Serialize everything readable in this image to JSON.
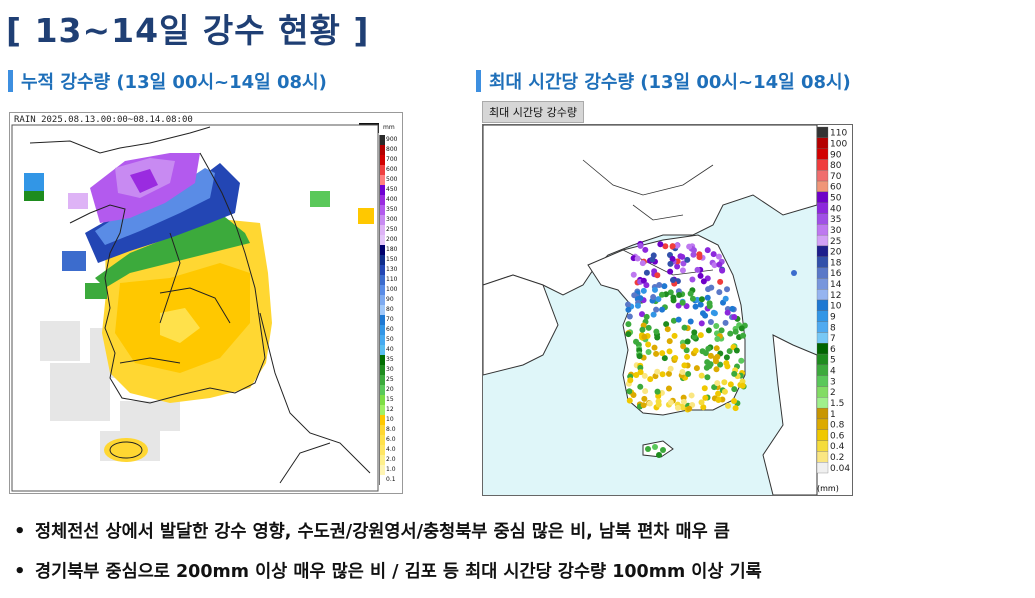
{
  "title": "[ 13~14일 강수 현황 ]",
  "left_panel": {
    "heading": "누적 강수량 (13일 00시~14일 08시)",
    "map_header": "RAIN  2025.08.13.00:00~08.14.08:00",
    "max_badge": "7774",
    "legend_unit": "mm",
    "legend_labels": [
      "900",
      "800",
      "700",
      "600",
      "500",
      "450",
      "400",
      "350",
      "300",
      "250",
      "200",
      "180",
      "150",
      "130",
      "110",
      "100",
      "90",
      "80",
      "70",
      "60",
      "50",
      "40",
      "35",
      "30",
      "25",
      "20",
      "15",
      "12",
      "10",
      "8.0",
      "6.0",
      "4.0",
      "2.0",
      "1.0",
      "0.1"
    ],
    "legend_colors": [
      "#2a2a2a",
      "#b40000",
      "#d20000",
      "#f04040",
      "#ff7f7f",
      "#6e00d2",
      "#9a2be0",
      "#b35aee",
      "#c88af2",
      "#deb3f6",
      "#e4c6fa",
      "#00006e",
      "#0f2d8c",
      "#2346b4",
      "#3c6ccd",
      "#5a8ce6",
      "#7eaaf0",
      "#a0c8fa",
      "#1e78d2",
      "#3296e6",
      "#46aaf0",
      "#5abef0",
      "#006e00",
      "#1e8c1e",
      "#3caa3c",
      "#5ac85a",
      "#7ede46",
      "#a0f064",
      "#ffc800",
      "#ffd732",
      "#ffe14b",
      "#ffe664",
      "#fff08c",
      "#fff5b4",
      "#ffffff"
    ]
  },
  "right_panel": {
    "heading": "최대 시간당 강수량 (13일 00시~14일 08시)",
    "map_tag": "최대 시간당 강수량",
    "legend_labels": [
      "110",
      "100",
      "90",
      "80",
      "70",
      "60",
      "50",
      "40",
      "35",
      "30",
      "25",
      "20",
      "18",
      "16",
      "14",
      "12",
      "10",
      "9",
      "8",
      "7",
      "6",
      "5",
      "4",
      "3",
      "2",
      "1.5",
      "1",
      "0.8",
      "0.6",
      "0.4",
      "0.2",
      "0.04"
    ],
    "legend_colors": [
      "#333333",
      "#b40000",
      "#d20000",
      "#f03c3c",
      "#f06e6e",
      "#f09678",
      "#6e00c8",
      "#8c28dc",
      "#a050e6",
      "#be78f0",
      "#d2a0f6",
      "#1e1e8c",
      "#3250aa",
      "#5a78c8",
      "#7896dc",
      "#96b4f0",
      "#1e78d2",
      "#3296e6",
      "#50aaf0",
      "#78c8f5",
      "#006400",
      "#1e8c1e",
      "#3caa3c",
      "#5ac85a",
      "#82dc64",
      "#a0f08c",
      "#c89600",
      "#dcaa00",
      "#f0c800",
      "#f5dc3c",
      "#fae682",
      "#f0f0f0"
    ],
    "legend_unit": "(mm)"
  },
  "bullets": [
    "정체전선 상에서 발달한 강수 영향, 수도권/강원영서/충청북부 중심 많은 비, 남북 편차 매우 큼",
    "경기북부 중심으로 200mm 이상 매우 많은 비 / 김포 등 최대 시간당 강수량 100mm 이상 기록"
  ]
}
